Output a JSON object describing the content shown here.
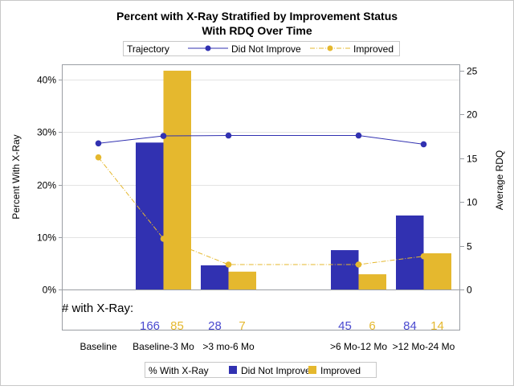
{
  "chart_data": {
    "type": "bar",
    "title": [
      "Percent with X-Ray Stratified by Improvement Status",
      "With RDQ Over Time"
    ],
    "categories": [
      "Baseline",
      "Baseline-3 Mo",
      ">3 mo-6 Mo",
      "",
      ">6 Mo-12 Mo",
      ">12 Mo-24 Mo"
    ],
    "ylabel": "Percent With X-Ray",
    "y2label": "Average RDQ",
    "ylim": [
      0,
      40
    ],
    "y2lim": [
      0,
      25
    ],
    "yticks": [
      "0%",
      "10%",
      "20%",
      "30%",
      "40%"
    ],
    "yticks_values": [
      0,
      10,
      20,
      30,
      40
    ],
    "y2ticks": [
      0,
      5,
      10,
      15,
      20,
      25
    ],
    "grid": true,
    "bar_series": [
      {
        "name": "Did Not Improve",
        "color": "#3131b1",
        "values": [
          null,
          28.0,
          4.6,
          null,
          7.5,
          14.1
        ]
      },
      {
        "name": "Improved",
        "color": "#e5b82e",
        "values": [
          null,
          41.7,
          3.4,
          null,
          2.9,
          6.9
        ]
      }
    ],
    "line_series": [
      {
        "name": "Did Not Improve",
        "color": "#3131b1",
        "axis": "y2",
        "values": [
          16.7,
          17.55,
          17.6,
          null,
          17.6,
          16.6
        ]
      },
      {
        "name": "Improved",
        "color": "#e5b82e",
        "axis": "y2",
        "values": [
          15.1,
          5.8,
          2.85,
          null,
          2.85,
          3.8
        ]
      }
    ],
    "counts_label": "# with X-Ray:",
    "counts": [
      {
        "category": "Baseline-3 Mo",
        "did_not_improve": "166",
        "improved": "85"
      },
      {
        "category": ">3 mo-6 Mo",
        "did_not_improve": "28",
        "improved": "7"
      },
      {
        "category": ">6 Mo-12 Mo",
        "did_not_improve": "45",
        "improved": "6"
      },
      {
        "category": ">12 Mo-24 Mo",
        "did_not_improve": "84",
        "improved": "14"
      }
    ],
    "legend_top": {
      "title": "Trajectory",
      "items": [
        "Did Not Improve",
        "Improved"
      ],
      "placement": "top"
    },
    "legend_bottom": {
      "title": "% With X-Ray",
      "items": [
        "Did Not Improve",
        "Improved"
      ],
      "placement": "bottom"
    }
  }
}
